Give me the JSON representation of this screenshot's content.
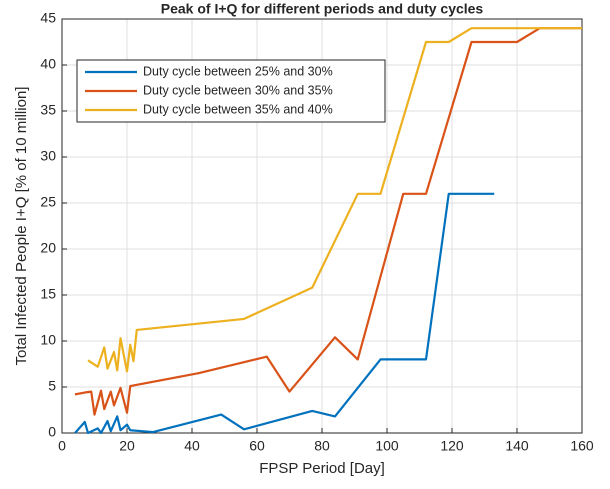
{
  "chart_data": {
    "type": "line",
    "title": "Peak of I+Q for different periods and duty cycles",
    "xlabel": "FPSP Period [Day]",
    "ylabel": "Total Infected People I+Q [% of 10 million]",
    "xlim": [
      0,
      160
    ],
    "xticks": [
      0,
      20,
      40,
      60,
      80,
      100,
      120,
      140,
      160
    ],
    "ylim": [
      0,
      45
    ],
    "yticks": [
      0,
      5,
      10,
      15,
      20,
      25,
      30,
      35,
      40,
      45
    ],
    "grid": true,
    "legend": "upper left",
    "series": [
      {
        "name": "Duty cycle between 25% and 30%",
        "color": "#0072BD",
        "x": [
          4,
          7,
          8,
          11,
          12,
          14,
          15,
          17,
          18,
          20,
          21,
          28,
          49,
          56,
          77,
          84,
          98,
          112,
          119,
          133
        ],
        "values": [
          0,
          1.2,
          0,
          0.5,
          0,
          1.3,
          0.2,
          1.8,
          0.3,
          0.9,
          0.3,
          0.1,
          2,
          0.4,
          2.4,
          1.8,
          8,
          8,
          26,
          26
        ]
      },
      {
        "name": "Duty cycle between 30% and 35%",
        "color": "#D95319",
        "x": [
          4,
          7,
          9,
          10,
          12,
          13,
          15,
          16,
          18,
          20,
          21,
          42,
          63,
          70,
          84,
          91,
          105,
          112,
          126,
          140,
          147,
          160
        ],
        "values": [
          4.2,
          4.4,
          4.5,
          2,
          4.6,
          2.6,
          4.5,
          3,
          4.9,
          2.2,
          5.1,
          6.5,
          8.3,
          4.5,
          10.4,
          8,
          26,
          26,
          42.5,
          42.5,
          44,
          44
        ]
      },
      {
        "name": "Duty cycle between 35% and 40%",
        "color": "#EDB120",
        "x": [
          8,
          11,
          13,
          14,
          16,
          17,
          18,
          20,
          21,
          22,
          23,
          56,
          77,
          91,
          98,
          112,
          119,
          126,
          160
        ],
        "values": [
          7.9,
          7.2,
          9.3,
          7,
          8.8,
          6.8,
          10.3,
          6.7,
          9.6,
          7.8,
          11.2,
          12.4,
          15.8,
          26,
          26,
          42.5,
          42.5,
          44,
          44
        ]
      }
    ]
  }
}
